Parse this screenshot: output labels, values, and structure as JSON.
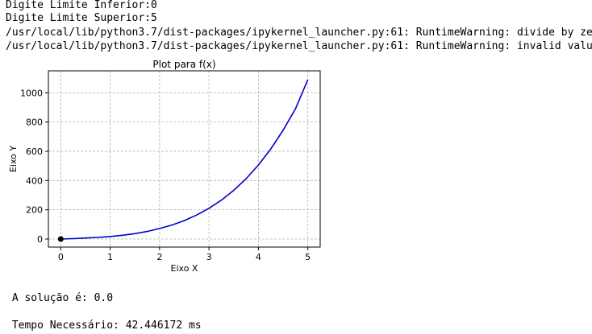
{
  "output": {
    "lines": [
      "Digite Limite Inferior:0",
      "Digite Limite Superior:5",
      "/usr/local/lib/python3.7/dist-packages/ipykernel_launcher.py:61: RuntimeWarning: divide by zero",
      "/usr/local/lib/python3.7/dist-packages/ipykernel_launcher.py:61: RuntimeWarning: invalid value"
    ],
    "solution": " A solução é: 0.0",
    "elapsed": " Tempo Necessário: 42.446172 ms"
  },
  "chart_data": {
    "type": "line",
    "title": "Plot para f(x)",
    "xlabel": "Eixo X",
    "ylabel": "Eixo Y",
    "xlim": [
      -0.25,
      5.25
    ],
    "ylim": [
      -55,
      1150
    ],
    "xticks": [
      0,
      1,
      2,
      3,
      4,
      5
    ],
    "yticks": [
      0,
      200,
      400,
      600,
      800,
      1000
    ],
    "grid": true,
    "series": [
      {
        "color": "#0000cc",
        "x": [
          0,
          0.25,
          0.5,
          0.75,
          1,
          1.25,
          1.5,
          1.75,
          2,
          2.25,
          2.5,
          2.75,
          3,
          3.25,
          3.5,
          3.75,
          4,
          4.25,
          4.5,
          4.75,
          5
        ],
        "y": [
          0,
          3,
          7,
          11,
          17,
          26,
          37,
          52,
          72,
          96,
          126,
          164,
          210,
          266,
          333,
          412,
          506,
          616,
          744,
          891,
          1090
        ]
      }
    ],
    "points": [
      {
        "x": 0,
        "y": 0,
        "color": "#000000"
      }
    ]
  }
}
